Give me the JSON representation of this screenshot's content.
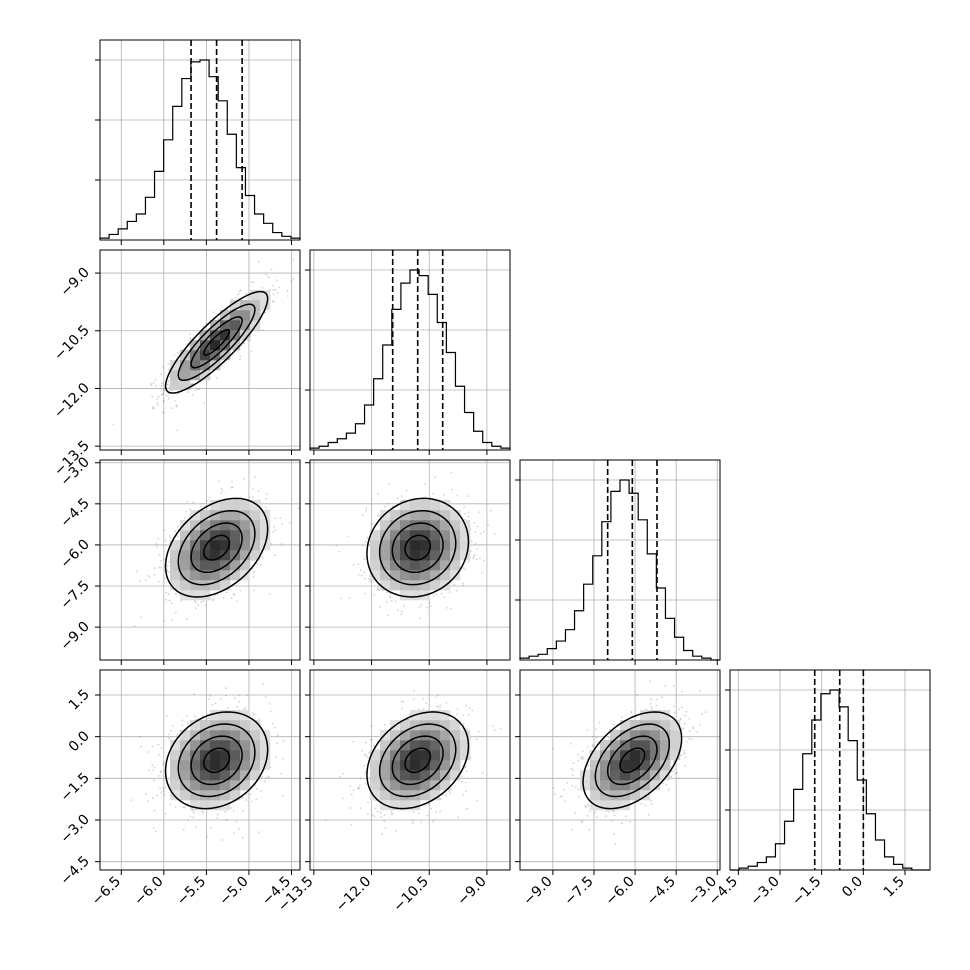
{
  "chart_data": {
    "type": "corner",
    "parameters": 4,
    "param_ticks": [
      [
        -6.5,
        -6.0,
        -5.5,
        -5.0,
        -4.5
      ],
      [
        -13.5,
        -12.0,
        -10.5,
        -9.0
      ],
      [
        -9.0,
        -7.5,
        -6.0,
        -4.5,
        -3.0
      ],
      [
        -4.5,
        -3.0,
        -1.5,
        0.0,
        1.5
      ]
    ],
    "param_tick_labels": [
      [
        "−6.5",
        "−6.0",
        "−5.5",
        "−5.0",
        "−4.5"
      ],
      [
        "−13.5",
        "−12.0",
        "−10.5",
        "−9.0"
      ],
      [
        "−9.0",
        "−7.5",
        "−6.0",
        "−4.5",
        "−3.0"
      ],
      [
        "−4.5",
        "−3.0",
        "−1.5",
        "0.0",
        "1.5"
      ]
    ],
    "param_ranges": [
      [
        -6.75,
        -4.4
      ],
      [
        -13.6,
        -8.4
      ],
      [
        -10.2,
        -2.9
      ],
      [
        -4.8,
        2.4
      ]
    ],
    "grid": true,
    "histograms": [
      {
        "param": 0,
        "quantiles": [
          -5.68,
          -5.38,
          -5.08
        ],
        "bins": [
          -6.75,
          -4.4
        ],
        "counts": [
          1,
          3,
          6,
          10,
          14,
          23,
          37,
          54,
          72,
          87,
          96,
          97,
          88,
          75,
          57,
          39,
          24,
          14,
          9,
          4,
          2,
          1
        ]
      },
      {
        "param": 1,
        "quantiles": [
          -11.45,
          -10.8,
          -10.15
        ],
        "bins": [
          -13.6,
          -8.4
        ],
        "counts": [
          1,
          2,
          4,
          6,
          9,
          14,
          24,
          38,
          56,
          75,
          89,
          96,
          93,
          83,
          68,
          52,
          34,
          20,
          10,
          4,
          2,
          1
        ]
      },
      {
        "param": 2,
        "quantiles": [
          -7.0,
          -6.1,
          -5.2
        ],
        "bins": [
          -10.2,
          -2.9
        ],
        "counts": [
          1,
          2,
          3,
          6,
          10,
          16,
          26,
          40,
          55,
          73,
          89,
          95,
          88,
          74,
          56,
          38,
          22,
          12,
          5,
          2,
          1,
          0
        ]
      },
      {
        "param": 3,
        "quantiles": [
          -1.75,
          -0.85,
          0.0
        ],
        "bins": [
          -4.8,
          2.4
        ],
        "counts": [
          0,
          1,
          2,
          4,
          7,
          14,
          26,
          43,
          62,
          80,
          94,
          96,
          87,
          69,
          48,
          30,
          16,
          7,
          3,
          1,
          0,
          0
        ]
      }
    ],
    "pairs": [
      {
        "x": 0,
        "y": 1,
        "mean": [
          -5.38,
          -10.8
        ],
        "sd": [
          0.3,
          0.66
        ],
        "corr": 0.86
      },
      {
        "x": 0,
        "y": 2,
        "mean": [
          -5.38,
          -6.1
        ],
        "sd": [
          0.3,
          0.9
        ],
        "corr": 0.38
      },
      {
        "x": 1,
        "y": 2,
        "mean": [
          -10.8,
          -6.1
        ],
        "sd": [
          0.66,
          0.9
        ],
        "corr": 0.12
      },
      {
        "x": 0,
        "y": 3,
        "mean": [
          -5.38,
          -0.85
        ],
        "sd": [
          0.3,
          0.87
        ],
        "corr": 0.22
      },
      {
        "x": 1,
        "y": 3,
        "mean": [
          -10.8,
          -0.85
        ],
        "sd": [
          0.66,
          0.87
        ],
        "corr": 0.3
      },
      {
        "x": 2,
        "y": 3,
        "mean": [
          -6.1,
          -0.85
        ],
        "sd": [
          0.9,
          0.87
        ],
        "corr": 0.45
      }
    ],
    "contour_levels": [
      "0.5 sigma",
      "1 sigma",
      "1.5 sigma",
      "2 sigma"
    ],
    "colors": {
      "points": "#808080",
      "contour": "#000000",
      "quantile_line": "#000000",
      "grid": "#b0b0b0"
    }
  }
}
